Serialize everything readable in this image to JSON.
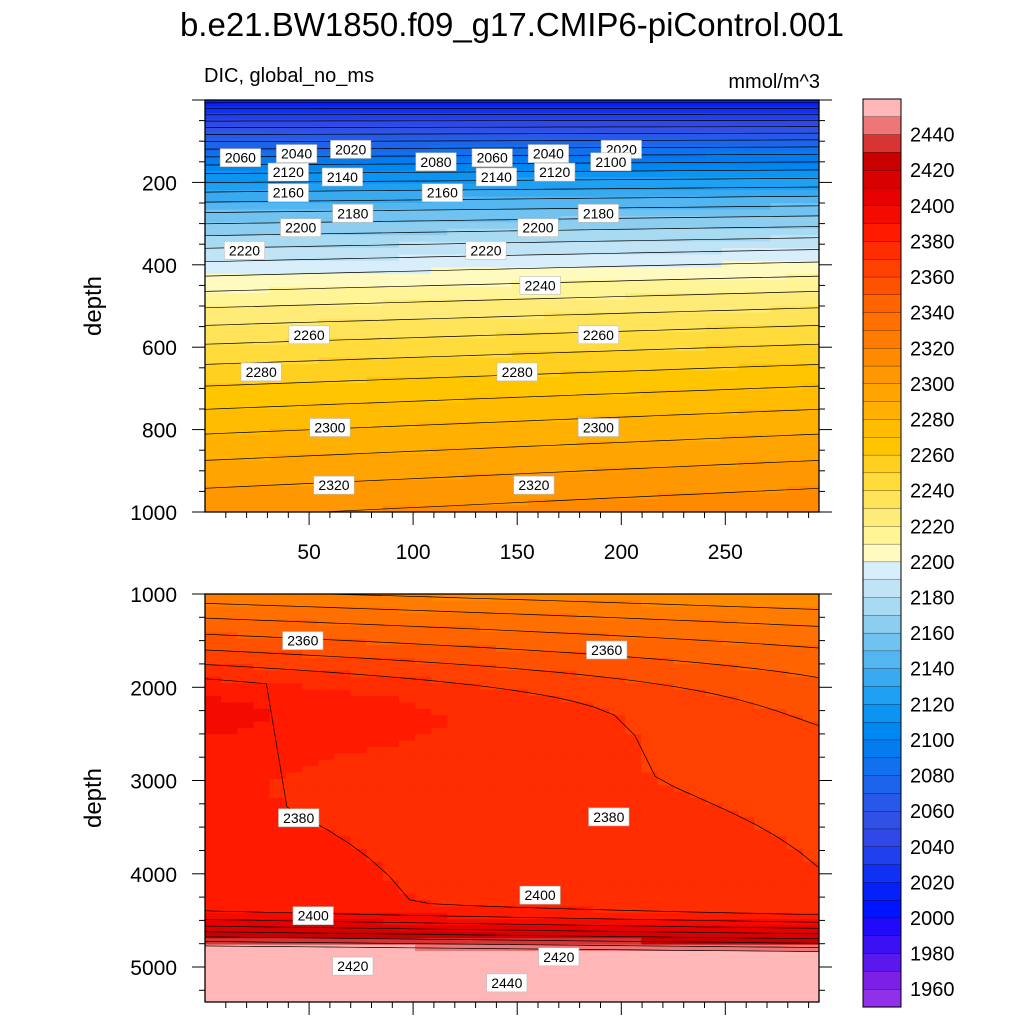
{
  "title": "b.e21.BW1850.f09_g17.CMIP6-piControl.001",
  "chart_data": {
    "type": "contour",
    "variable": "DIC, global_no_ms",
    "units": "mmol/m^3",
    "x_ticks": [
      "50",
      "100",
      "150",
      "200",
      "250"
    ],
    "x_tick_values": [
      50,
      100,
      150,
      200,
      250
    ],
    "x_range": [
      0,
      295
    ],
    "panels": [
      {
        "name": "upper",
        "ylabel": "depth",
        "y_range": [
          0,
          1000
        ],
        "y_ticks": [
          "200",
          "400",
          "600",
          "800",
          "1000"
        ],
        "y_tick_values": [
          200,
          400,
          600,
          800,
          1000
        ],
        "labels": [
          {
            "text": "2020",
            "x": 70,
            "y": 120
          },
          {
            "text": "2020",
            "x": 200,
            "y": 120
          },
          {
            "text": "2040",
            "x": 44,
            "y": 130
          },
          {
            "text": "2040",
            "x": 165,
            "y": 130
          },
          {
            "text": "2060",
            "x": 17,
            "y": 140
          },
          {
            "text": "2060",
            "x": 138,
            "y": 140
          },
          {
            "text": "2080",
            "x": 111,
            "y": 150
          },
          {
            "text": "2100",
            "x": 195,
            "y": 150
          },
          {
            "text": "2120",
            "x": 40,
            "y": 175
          },
          {
            "text": "2120",
            "x": 168,
            "y": 175
          },
          {
            "text": "2140",
            "x": 66,
            "y": 187
          },
          {
            "text": "2140",
            "x": 140,
            "y": 187
          },
          {
            "text": "2160",
            "x": 40,
            "y": 225
          },
          {
            "text": "2160",
            "x": 114,
            "y": 225
          },
          {
            "text": "2180",
            "x": 71,
            "y": 275
          },
          {
            "text": "2180",
            "x": 189,
            "y": 275
          },
          {
            "text": "2200",
            "x": 46,
            "y": 310
          },
          {
            "text": "2200",
            "x": 160,
            "y": 310
          },
          {
            "text": "2220",
            "x": 19,
            "y": 365
          },
          {
            "text": "2220",
            "x": 135,
            "y": 365
          },
          {
            "text": "2240",
            "x": 161,
            "y": 450
          },
          {
            "text": "2260",
            "x": 50,
            "y": 570
          },
          {
            "text": "2260",
            "x": 189,
            "y": 570
          },
          {
            "text": "2280",
            "x": 27,
            "y": 660
          },
          {
            "text": "2280",
            "x": 150,
            "y": 660
          },
          {
            "text": "2300",
            "x": 60,
            "y": 795
          },
          {
            "text": "2300",
            "x": 189,
            "y": 795
          },
          {
            "text": "2320",
            "x": 62,
            "y": 935
          },
          {
            "text": "2320",
            "x": 158,
            "y": 935
          }
        ]
      },
      {
        "name": "lower",
        "ylabel": "depth",
        "y_range": [
          1000,
          5375
        ],
        "y_ticks": [
          "1000",
          "2000",
          "3000",
          "4000",
          "5000"
        ],
        "y_tick_values": [
          1000,
          2000,
          3000,
          4000,
          5000
        ],
        "labels": [
          {
            "text": "2360",
            "x": 47,
            "y": 1500
          },
          {
            "text": "2360",
            "x": 193,
            "y": 1600
          },
          {
            "text": "2380",
            "x": 45,
            "y": 3400
          },
          {
            "text": "2380",
            "x": 194,
            "y": 3390
          },
          {
            "text": "2400",
            "x": 52,
            "y": 4450
          },
          {
            "text": "2400",
            "x": 161,
            "y": 4230
          },
          {
            "text": "2420",
            "x": 71,
            "y": 4990
          },
          {
            "text": "2420",
            "x": 170,
            "y": 4890
          },
          {
            "text": "2440",
            "x": 145,
            "y": 5170
          }
        ]
      }
    ],
    "colorbar": {
      "ticks": [
        "2440",
        "2420",
        "2400",
        "2380",
        "2360",
        "2340",
        "2320",
        "2300",
        "2280",
        "2260",
        "2240",
        "2220",
        "2200",
        "2180",
        "2160",
        "2140",
        "2120",
        "2100",
        "2080",
        "2060",
        "2040",
        "2020",
        "2000",
        "1980",
        "1960"
      ],
      "tick_values": [
        2440,
        2420,
        2400,
        2380,
        2360,
        2340,
        2320,
        2300,
        2280,
        2260,
        2240,
        2220,
        2200,
        2180,
        2160,
        2140,
        2120,
        2100,
        2080,
        2060,
        2040,
        2020,
        2000,
        1980,
        1960
      ],
      "range": [
        1950,
        2460
      ],
      "colors": [
        "#ffb6b6",
        "#ef7676",
        "#d93434",
        "#c80000",
        "#d80000",
        "#e80000",
        "#f50a00",
        "#ff1a00",
        "#ff2d00",
        "#ff4000",
        "#ff5200",
        "#ff6400",
        "#ff7000",
        "#ff7c00",
        "#ff8a00",
        "#ff9800",
        "#ffa400",
        "#ffb000",
        "#ffbc00",
        "#ffc600",
        "#ffd020",
        "#ffdc3c",
        "#ffe45a",
        "#ffec78",
        "#fff496",
        "#fffbc0",
        "#d8eefa",
        "#c0e4f6",
        "#a8daf2",
        "#8ccdf0",
        "#70c2f0",
        "#54b6f0",
        "#3aaaf0",
        "#20a0f2",
        "#0c94f2",
        "#0088f2",
        "#047cf0",
        "#1070ee",
        "#1c64ec",
        "#2858ea",
        "#3050e6",
        "#3048e8",
        "#2040ee",
        "#1030f4",
        "#0620fa",
        "#0014ff",
        "#1f0bfa",
        "#3b10f4",
        "#5a18ee",
        "#7c20e6",
        "#9030e8"
      ]
    }
  }
}
